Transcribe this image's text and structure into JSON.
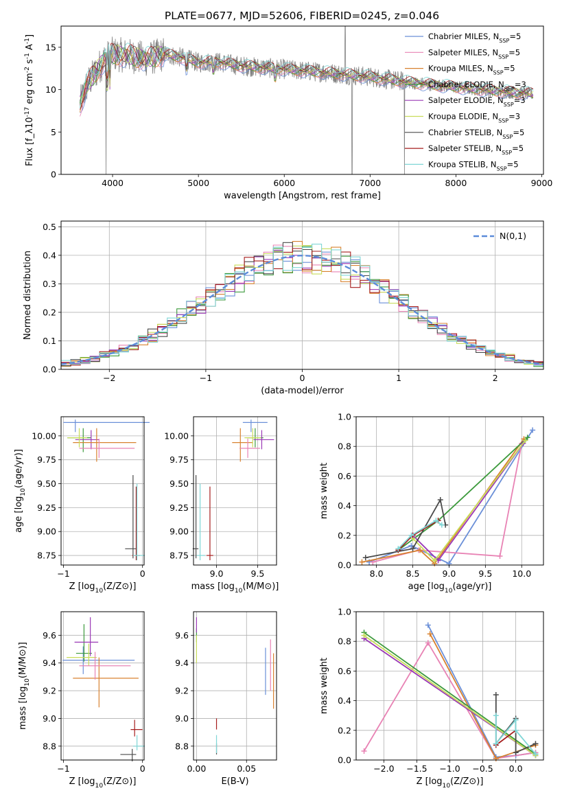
{
  "figure": {
    "title": "PLATE=0677, MJD=52606, FIBERID=0245, z=0.046"
  },
  "colors": {
    "Chabrier MILES": "#6a8fd8",
    "Salpeter MILES": "#e882b4",
    "Kroupa MILES": "#d8812f",
    "Chabrier ELODIE": "#3c9a3c",
    "Salpeter ELODIE": "#9a39b6",
    "Kroupa ELODIE": "#c8dc5a",
    "Chabrier STELIB": "#4a4a4a",
    "Salpeter STELIB": "#a51c1c",
    "Kroupa STELIB": "#7fd6d6",
    "data": "#808080",
    "gauss": "#5b8bd9"
  },
  "chart_data": [
    {
      "id": "spectrum",
      "type": "line",
      "xlabel": "wavelength [Angstrom, rest frame]",
      "ylabel": "Flux [f_λ10^{-17} erg cm^{-2} s^{-1} A^{-1}]",
      "xlim": [
        3400,
        9020
      ],
      "ylim": [
        0,
        17.5
      ],
      "xticks": [
        4000,
        5000,
        6000,
        7000,
        8000,
        9000
      ],
      "yticks": [
        0,
        5,
        10,
        15
      ],
      "legend_position": "top-right",
      "legend": [
        {
          "name": "Chabrier MILES",
          "sub": "SSP",
          "n": "5"
        },
        {
          "name": "Salpeter MILES",
          "sub": "SSP",
          "n": "5"
        },
        {
          "name": "Kroupa MILES",
          "sub": "SSP",
          "n": "5"
        },
        {
          "name": "Chabrier ELODIE",
          "sub": "SSP",
          "n": "3"
        },
        {
          "name": "Salpeter ELODIE",
          "sub": "SSP",
          "n": "3"
        },
        {
          "name": "Kroupa ELODIE",
          "sub": "SSP",
          "n": "3"
        },
        {
          "name": "Chabrier STELIB",
          "sub": "SSP",
          "n": "5"
        },
        {
          "name": "Salpeter STELIB",
          "sub": "SSP",
          "n": "5"
        },
        {
          "name": "Kroupa STELIB",
          "sub": "SSP",
          "n": "5"
        }
      ],
      "continuum": [
        [
          3620,
          8.2
        ],
        [
          3700,
          10.5
        ],
        [
          3800,
          12.0
        ],
        [
          3900,
          13.5
        ],
        [
          4000,
          14.2
        ],
        [
          4200,
          14.0
        ],
        [
          4400,
          13.6
        ],
        [
          4600,
          14.2
        ],
        [
          4800,
          13.8
        ],
        [
          5000,
          13.2
        ],
        [
          5200,
          13.3
        ],
        [
          5500,
          12.8
        ],
        [
          6000,
          12.4
        ],
        [
          6500,
          12.0
        ],
        [
          7000,
          11.5
        ],
        [
          7500,
          10.8
        ],
        [
          8000,
          10.3
        ],
        [
          8500,
          9.8
        ],
        [
          8900,
          9.5
        ]
      ],
      "data_spikes": [
        [
          3925,
          0
        ],
        [
          6790,
          0
        ],
        [
          7400,
          0
        ],
        [
          6710,
          17.5
        ]
      ]
    },
    {
      "id": "residuals",
      "type": "histogram",
      "xlabel": "(data-model)/error",
      "ylabel": "Normed distribution",
      "xlim": [
        -2.5,
        2.5
      ],
      "ylim": [
        0,
        0.52
      ],
      "xticks": [
        -2,
        -1,
        0,
        1,
        2
      ],
      "yticks": [
        0.0,
        0.1,
        0.2,
        0.3,
        0.4,
        0.5
      ],
      "grid": true,
      "legend_position": "top-right",
      "reference_curve": {
        "name": "N(0,1)",
        "mean": 0,
        "sigma": 1
      }
    },
    {
      "id": "age-vs-Z",
      "type": "errorbar",
      "xlabel": "Z [log10(Z/Z⊙)]",
      "ylabel": "age  [log10(age/yr)]",
      "xlim": [
        -1.03,
        0.02
      ],
      "ylim": [
        8.65,
        10.2
      ],
      "xticks": [
        -1,
        0
      ],
      "yticks": [
        8.75,
        9.0,
        9.25,
        9.5,
        9.75,
        10.0
      ],
      "grid": true,
      "points": [
        {
          "series": "Chabrier MILES",
          "x": -0.85,
          "xerr": [
            0.15,
            0.94
          ],
          "y": 10.14,
          "yerr": [
            0.1,
            0.03
          ]
        },
        {
          "series": "Chabrier ELODIE",
          "x": -0.75,
          "xerr": [
            0.2,
            0.1
          ],
          "y": 9.98,
          "yerr": [
            0.15,
            0.1
          ]
        },
        {
          "series": "Salpeter ELODIE",
          "x": -0.65,
          "xerr": [
            0.2,
            0.1
          ],
          "y": 9.96,
          "yerr": [
            0.1,
            0.1
          ]
        },
        {
          "series": "Kroupa MILES",
          "x": -0.58,
          "xerr": [
            0.3,
            0.5
          ],
          "y": 9.93,
          "yerr": [
            0.2,
            0.15
          ]
        },
        {
          "series": "Kroupa ELODIE",
          "x": -0.8,
          "xerr": [
            0.15,
            0.1
          ],
          "y": 9.98,
          "yerr": [
            0.1,
            0.1
          ]
        },
        {
          "series": "Salpeter MILES",
          "x": -0.55,
          "xerr": [
            0.25,
            0.45
          ],
          "y": 9.87,
          "yerr": [
            0.1,
            0.1
          ]
        },
        {
          "series": "Chabrier STELIB",
          "x": -0.12,
          "xerr": [
            0.1,
            0.05
          ],
          "y": 8.82,
          "yerr": [
            0.1,
            0.77
          ]
        },
        {
          "series": "Salpeter STELIB",
          "x": -0.08,
          "xerr": [
            0.05,
            0.05
          ],
          "y": 8.75,
          "yerr": [
            0.05,
            0.72
          ]
        },
        {
          "series": "Kroupa STELIB",
          "x": -0.07,
          "xerr": [
            0.05,
            0.1
          ],
          "y": 8.75,
          "yerr": [
            0.05,
            0.75
          ]
        }
      ]
    },
    {
      "id": "age-vs-mass",
      "type": "errorbar",
      "xlabel": "mass [log10(M/M⊙)]",
      "xlim": [
        8.72,
        9.73
      ],
      "ylim": [
        8.65,
        10.2
      ],
      "xticks": [
        9.0,
        9.5
      ],
      "yticks": [
        8.75,
        9.0,
        9.25,
        9.5,
        9.75,
        10.0
      ],
      "grid": true,
      "points": [
        {
          "series": "Chabrier MILES",
          "x": 9.42,
          "xerr": [
            0.1,
            0.2
          ],
          "y": 10.14,
          "yerr": [
            0.1,
            0.03
          ]
        },
        {
          "series": "Chabrier ELODIE",
          "x": 9.47,
          "xerr": [
            0.1,
            0.1
          ],
          "y": 9.98,
          "yerr": [
            0.1,
            0.1
          ]
        },
        {
          "series": "Salpeter ELODIE",
          "x": 9.55,
          "xerr": [
            0.1,
            0.15
          ],
          "y": 9.96,
          "yerr": [
            0.1,
            0.1
          ]
        },
        {
          "series": "Kroupa MILES",
          "x": 9.29,
          "xerr": [
            0.1,
            0.15
          ],
          "y": 9.93,
          "yerr": [
            0.2,
            0.15
          ]
        },
        {
          "series": "Kroupa ELODIE",
          "x": 9.44,
          "xerr": [
            0.1,
            0.1
          ],
          "y": 9.98,
          "yerr": [
            0.1,
            0.1
          ]
        },
        {
          "series": "Salpeter MILES",
          "x": 9.38,
          "xerr": [
            0.1,
            0.15
          ],
          "y": 9.87,
          "yerr": [
            0.1,
            0.1
          ]
        },
        {
          "series": "Chabrier STELIB",
          "x": 8.75,
          "xerr": [
            0.04,
            0.03
          ],
          "y": 8.82,
          "yerr": [
            0.1,
            0.77
          ]
        },
        {
          "series": "Salpeter STELIB",
          "x": 8.92,
          "xerr": [
            0.04,
            0.04
          ],
          "y": 8.75,
          "yerr": [
            0.05,
            0.72
          ]
        },
        {
          "series": "Kroupa STELIB",
          "x": 8.8,
          "xerr": [
            0.04,
            0.06
          ],
          "y": 8.75,
          "yerr": [
            0.05,
            0.75
          ]
        }
      ]
    },
    {
      "id": "mass-weight-vs-age",
      "type": "line",
      "xlabel": "age  [log10(age/yr)]",
      "ylabel": "mass weight",
      "xlim": [
        7.72,
        10.3
      ],
      "ylim": [
        0,
        1.0
      ],
      "xticks": [
        8.0,
        8.5,
        9.0,
        9.5,
        10.0
      ],
      "yticks": [
        0.0,
        0.2,
        0.4,
        0.6,
        0.8,
        1.0
      ],
      "grid": true,
      "series": [
        {
          "name": "Chabrier MILES",
          "x": [
            7.9,
            8.48,
            9.0,
            10.15
          ],
          "y": [
            0.02,
            0.13,
            0.01,
            0.91
          ]
        },
        {
          "name": "Salpeter MILES",
          "x": [
            7.95,
            8.58,
            9.7,
            10.0
          ],
          "y": [
            0.02,
            0.1,
            0.06,
            0.82
          ]
        },
        {
          "name": "Kroupa MILES",
          "x": [
            7.8,
            8.6,
            8.8,
            10.03
          ],
          "y": [
            0.02,
            0.1,
            0.01,
            0.85
          ]
        },
        {
          "name": "Chabrier ELODIE",
          "x": [
            8.3,
            8.85,
            10.08
          ],
          "y": [
            0.1,
            0.3,
            0.86
          ]
        },
        {
          "name": "Salpeter ELODIE",
          "x": [
            8.5,
            8.85,
            10.02
          ],
          "y": [
            0.2,
            0.03,
            0.82
          ]
        },
        {
          "name": "Kroupa ELODIE",
          "x": [
            8.5,
            8.8,
            10.05
          ],
          "y": [
            0.18,
            0.03,
            0.84
          ]
        },
        {
          "name": "Chabrier STELIB",
          "x": [
            7.85,
            8.5,
            8.88,
            8.95
          ],
          "y": [
            0.05,
            0.11,
            0.44,
            0.27
          ]
        },
        {
          "name": "Salpeter STELIB",
          "x": [
            8.3,
            8.5,
            8.85
          ],
          "y": [
            0.1,
            0.2,
            0.3
          ]
        },
        {
          "name": "Kroupa STELIB",
          "x": [
            8.3,
            8.48,
            8.82,
            8.9
          ],
          "y": [
            0.11,
            0.2,
            0.3,
            0.27
          ]
        }
      ]
    },
    {
      "id": "mass-vs-Z",
      "type": "errorbar",
      "xlabel": "Z [log10(Z/Z⊙)]",
      "ylabel": "mass [log10(M/M⊙)]",
      "xlim": [
        -1.03,
        0.02
      ],
      "ylim": [
        8.7,
        9.77
      ],
      "xticks": [
        -1,
        0
      ],
      "yticks": [
        8.8,
        9.0,
        9.2,
        9.4,
        9.6
      ],
      "grid": true,
      "points": [
        {
          "series": "Chabrier MILES",
          "x": -0.75,
          "xerr": [
            0.26,
            0.65
          ],
          "y": 9.42,
          "yerr": [
            0.1,
            0.1
          ]
        },
        {
          "series": "Chabrier ELODIE",
          "x": -0.74,
          "xerr": [
            0.1,
            0.1
          ],
          "y": 9.47,
          "yerr": [
            0.06,
            0.21
          ]
        },
        {
          "series": "Salpeter ELODIE",
          "x": -0.66,
          "xerr": [
            0.2,
            0.1
          ],
          "y": 9.55,
          "yerr": [
            0.1,
            0.18
          ]
        },
        {
          "series": "Kroupa MILES",
          "x": -0.55,
          "xerr": [
            0.33,
            0.5
          ],
          "y": 9.29,
          "yerr": [
            0.21,
            0.15
          ]
        },
        {
          "series": "Kroupa ELODIE",
          "x": -0.68,
          "xerr": [
            0.28,
            0.1
          ],
          "y": 9.44,
          "yerr": [
            0.06,
            0.1
          ]
        },
        {
          "series": "Salpeter MILES",
          "x": -0.6,
          "xerr": [
            0.2,
            0.45
          ],
          "y": 9.38,
          "yerr": [
            0.1,
            0.1
          ]
        },
        {
          "series": "Chabrier STELIB",
          "x": -0.13,
          "xerr": [
            0.15,
            0.05
          ],
          "y": 8.74,
          "yerr": [
            0.05,
            0.04
          ]
        },
        {
          "series": "Salpeter STELIB",
          "x": -0.1,
          "xerr": [
            0.05,
            0.1
          ],
          "y": 8.92,
          "yerr": [
            0.05,
            0.07
          ]
        },
        {
          "series": "Kroupa STELIB",
          "x": -0.07,
          "xerr": [
            0.05,
            0.1
          ],
          "y": 8.8,
          "yerr": [
            0.03,
            0.08
          ]
        }
      ]
    },
    {
      "id": "mass-vs-ebv",
      "type": "errorbar",
      "xlabel": "E(B-V)",
      "xlim": [
        -0.003,
        0.08
      ],
      "ylim": [
        8.7,
        9.77
      ],
      "xticks": [
        0.0,
        0.05
      ],
      "yticks": [
        8.8,
        9.0,
        9.2,
        9.4,
        9.6
      ],
      "grid": true,
      "points": [
        {
          "series": "Chabrier MILES",
          "x": 0.069,
          "xerr": [
            0,
            0
          ],
          "y": 9.34,
          "yerr": [
            0.17,
            0.17
          ]
        },
        {
          "series": "Salpeter MILES",
          "x": 0.074,
          "xerr": [
            0,
            0
          ],
          "y": 9.38,
          "yerr": [
            0.18,
            0.19
          ]
        },
        {
          "series": "Kroupa MILES",
          "x": 0.077,
          "xerr": [
            0,
            0
          ],
          "y": 9.27,
          "yerr": [
            0.2,
            0.2
          ]
        },
        {
          "series": "Chabrier ELODIE",
          "x": 0.0,
          "xerr": [
            0,
            0
          ],
          "y": 9.6,
          "yerr": [
            0.05,
            0.05
          ]
        },
        {
          "series": "Salpeter ELODIE",
          "x": 0.0,
          "xerr": [
            0,
            0
          ],
          "y": 9.67,
          "yerr": [
            0.05,
            0.06
          ]
        },
        {
          "series": "Kroupa ELODIE",
          "x": 0.0,
          "xerr": [
            0,
            0
          ],
          "y": 9.5,
          "yerr": [
            0.1,
            0.1
          ]
        },
        {
          "series": "Chabrier STELIB",
          "x": 0.02,
          "xerr": [
            0,
            0
          ],
          "y": 8.78,
          "yerr": [
            0.04,
            0.04
          ]
        },
        {
          "series": "Salpeter STELIB",
          "x": 0.02,
          "xerr": [
            0,
            0
          ],
          "y": 8.96,
          "yerr": [
            0.04,
            0.04
          ]
        },
        {
          "series": "Kroupa STELIB",
          "x": 0.02,
          "xerr": [
            0,
            0
          ],
          "y": 8.8,
          "yerr": [
            0.05,
            0.08
          ]
        }
      ]
    },
    {
      "id": "mass-weight-vs-Z",
      "type": "line",
      "xlabel": "Z [log10(Z/Z⊙)]",
      "ylabel": "mass weight",
      "xlim": [
        -2.42,
        0.42
      ],
      "ylim": [
        0,
        1.0
      ],
      "xticks": [
        -2.0,
        -1.5,
        -1.0,
        -0.5,
        0.0
      ],
      "yticks": [
        0.0,
        0.2,
        0.4,
        0.6,
        0.8,
        1.0
      ],
      "grid": true,
      "series": [
        {
          "name": "Chabrier MILES",
          "x": [
            -1.33,
            -0.3,
            0.0,
            0.3
          ],
          "y": [
            0.91,
            0.02,
            0.03,
            0.05
          ]
        },
        {
          "name": "Salpeter MILES",
          "x": [
            -2.3,
            -1.33,
            -0.3,
            0.3
          ],
          "y": [
            0.06,
            0.79,
            0.01,
            0.05
          ]
        },
        {
          "name": "Kroupa MILES",
          "x": [
            -1.3,
            -0.3,
            0.3
          ],
          "y": [
            0.85,
            0.01,
            0.1
          ]
        },
        {
          "name": "Chabrier ELODIE",
          "x": [
            -2.3,
            0.3
          ],
          "y": [
            0.86,
            0.04
          ]
        },
        {
          "name": "Salpeter ELODIE",
          "x": [
            -2.3,
            0.3
          ],
          "y": [
            0.82,
            0.03
          ]
        },
        {
          "name": "Kroupa ELODIE",
          "x": [
            -2.3,
            0.3
          ],
          "y": [
            0.84,
            0.03
          ]
        },
        {
          "name": "Chabrier STELIB",
          "x": [
            -0.3,
            -0.3,
            0.0,
            0.0,
            0.3
          ],
          "y": [
            0.44,
            0.11,
            0.28,
            0.05,
            0.11
          ]
        },
        {
          "name": "Salpeter STELIB",
          "x": [
            -0.3,
            0.0
          ],
          "y": [
            0.1,
            0.2
          ]
        },
        {
          "name": "Kroupa STELIB",
          "x": [
            -0.3,
            -0.3,
            0.0,
            0.0,
            0.3
          ],
          "y": [
            0.3,
            0.11,
            0.27,
            0.2,
            0.04
          ]
        }
      ]
    }
  ]
}
